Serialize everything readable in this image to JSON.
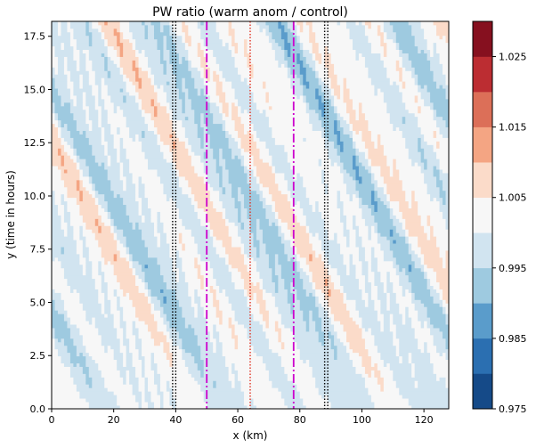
{
  "chart_data": {
    "type": "heatmap",
    "title": "PW ratio (warm anom / control)",
    "xlabel": "x (km)",
    "ylabel": "y (time in hours)",
    "xlim": [
      0,
      128
    ],
    "ylim": [
      0,
      18.2
    ],
    "x_ticks": [
      "0",
      "20",
      "40",
      "60",
      "80",
      "100",
      "120"
    ],
    "x_tick_values": [
      0,
      20,
      40,
      60,
      80,
      100,
      120
    ],
    "y_ticks": [
      "0.0",
      "2.5",
      "5.0",
      "7.5",
      "10.0",
      "12.5",
      "15.0",
      "17.5"
    ],
    "y_tick_values": [
      0,
      2.5,
      5,
      7.5,
      10,
      12.5,
      15,
      17.5
    ],
    "colorbar": {
      "levels": [
        0.975,
        0.98,
        0.985,
        0.99,
        0.995,
        1.0,
        1.005,
        1.01,
        1.015,
        1.02,
        1.025,
        1.03
      ],
      "colors": [
        "#154a88",
        "#2b6fb1",
        "#5a9ccb",
        "#9ecae0",
        "#d1e4f0",
        "#f7f7f7",
        "#fbdbc9",
        "#f4a583",
        "#dc6f58",
        "#bc2d32",
        "#86101f"
      ],
      "tick_labels": [
        "0.975",
        "0.985",
        "0.995",
        "1.005",
        "1.015",
        "1.025"
      ],
      "tick_values": [
        0.975,
        0.985,
        0.995,
        1.005,
        1.015,
        1.025
      ]
    },
    "reference_lines": [
      {
        "x": 39,
        "style": "dotted",
        "color": "#000000"
      },
      {
        "x": 40,
        "style": "dotted",
        "color": "#000000"
      },
      {
        "x": 50,
        "style": "dashdot",
        "color": "#cc00cc"
      },
      {
        "x": 64,
        "style": "dotted",
        "color": "#e03020"
      },
      {
        "x": 78,
        "style": "dashdot",
        "color": "#cc00cc"
      },
      {
        "x": 88,
        "style": "dotted",
        "color": "#000000"
      },
      {
        "x": 89,
        "style": "dotted",
        "color": "#000000"
      }
    ]
  }
}
